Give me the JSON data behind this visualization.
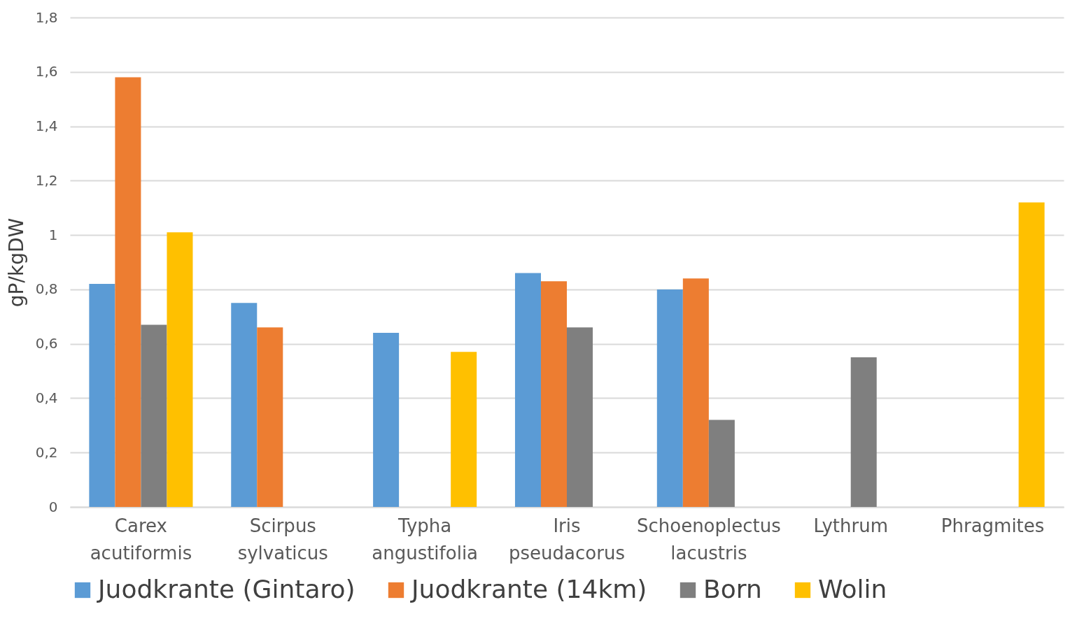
{
  "chart_data": {
    "type": "bar",
    "ylabel": "gP/kgDW",
    "categories": [
      "Carex acutiformis",
      "Scirpus sylvaticus",
      "Typha angustifolia",
      "Iris pseudacorus",
      "Schoenoplectus lacustris",
      "Lythrum",
      "Phragmites"
    ],
    "series": [
      {
        "name": "Juodkrante (Gintaro)",
        "color": "#5b9bd5",
        "values": [
          0.82,
          0.75,
          0.64,
          0.86,
          0.8,
          null,
          null
        ]
      },
      {
        "name": "Juodkrante (14km)",
        "color": "#ed7d31",
        "values": [
          1.58,
          0.66,
          null,
          0.83,
          0.84,
          null,
          null
        ]
      },
      {
        "name": "Born",
        "color": "#7f7f7f",
        "values": [
          0.67,
          null,
          null,
          0.66,
          0.32,
          0.55,
          null
        ]
      },
      {
        "name": "Wolin",
        "color": "#ffc000",
        "values": [
          1.01,
          null,
          0.57,
          null,
          null,
          null,
          1.12
        ]
      }
    ],
    "ylim": [
      0,
      1.8
    ],
    "yticks": [
      0,
      {
        "value": 0.2,
        "label": "0,2"
      },
      {
        "value": 0.4,
        "label": "0,4"
      },
      {
        "value": 0.6,
        "label": "0,6"
      },
      {
        "value": 0.8,
        "label": "0,8"
      },
      1,
      {
        "value": 1.2,
        "label": "1,2"
      },
      {
        "value": 1.4,
        "label": "1,4"
      },
      {
        "value": 1.6,
        "label": "1,6"
      },
      {
        "value": 1.8,
        "label": "1,8"
      }
    ],
    "grid": "y",
    "legend": "bottom"
  }
}
